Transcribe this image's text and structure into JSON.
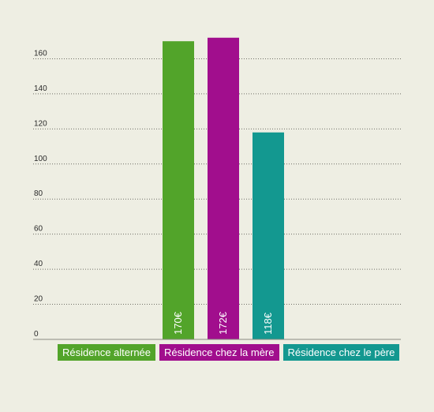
{
  "chart_data": {
    "type": "bar",
    "categories": [
      "Résidence alternée",
      "Résidence chez la mère",
      "Résidence chez le père"
    ],
    "values": [
      170,
      172,
      118
    ],
    "value_labels": [
      "170€",
      "172€",
      "118€"
    ],
    "colors": [
      "#52a42a",
      "#a10e8d",
      "#139890"
    ],
    "yticks": [
      "0",
      "20",
      "40",
      "60",
      "80",
      "100",
      "120",
      "140",
      "160"
    ],
    "ylim": [
      0,
      180
    ],
    "title": "",
    "xlabel": "",
    "ylabel": "",
    "grid": true,
    "legend": "bottom"
  },
  "legend": {
    "items": [
      {
        "label": "Résidence alternée",
        "color": "#52a42a"
      },
      {
        "label": "Résidence chez la mère",
        "color": "#a10e8d"
      },
      {
        "label": "Résidence chez le père",
        "color": "#139890"
      }
    ]
  }
}
